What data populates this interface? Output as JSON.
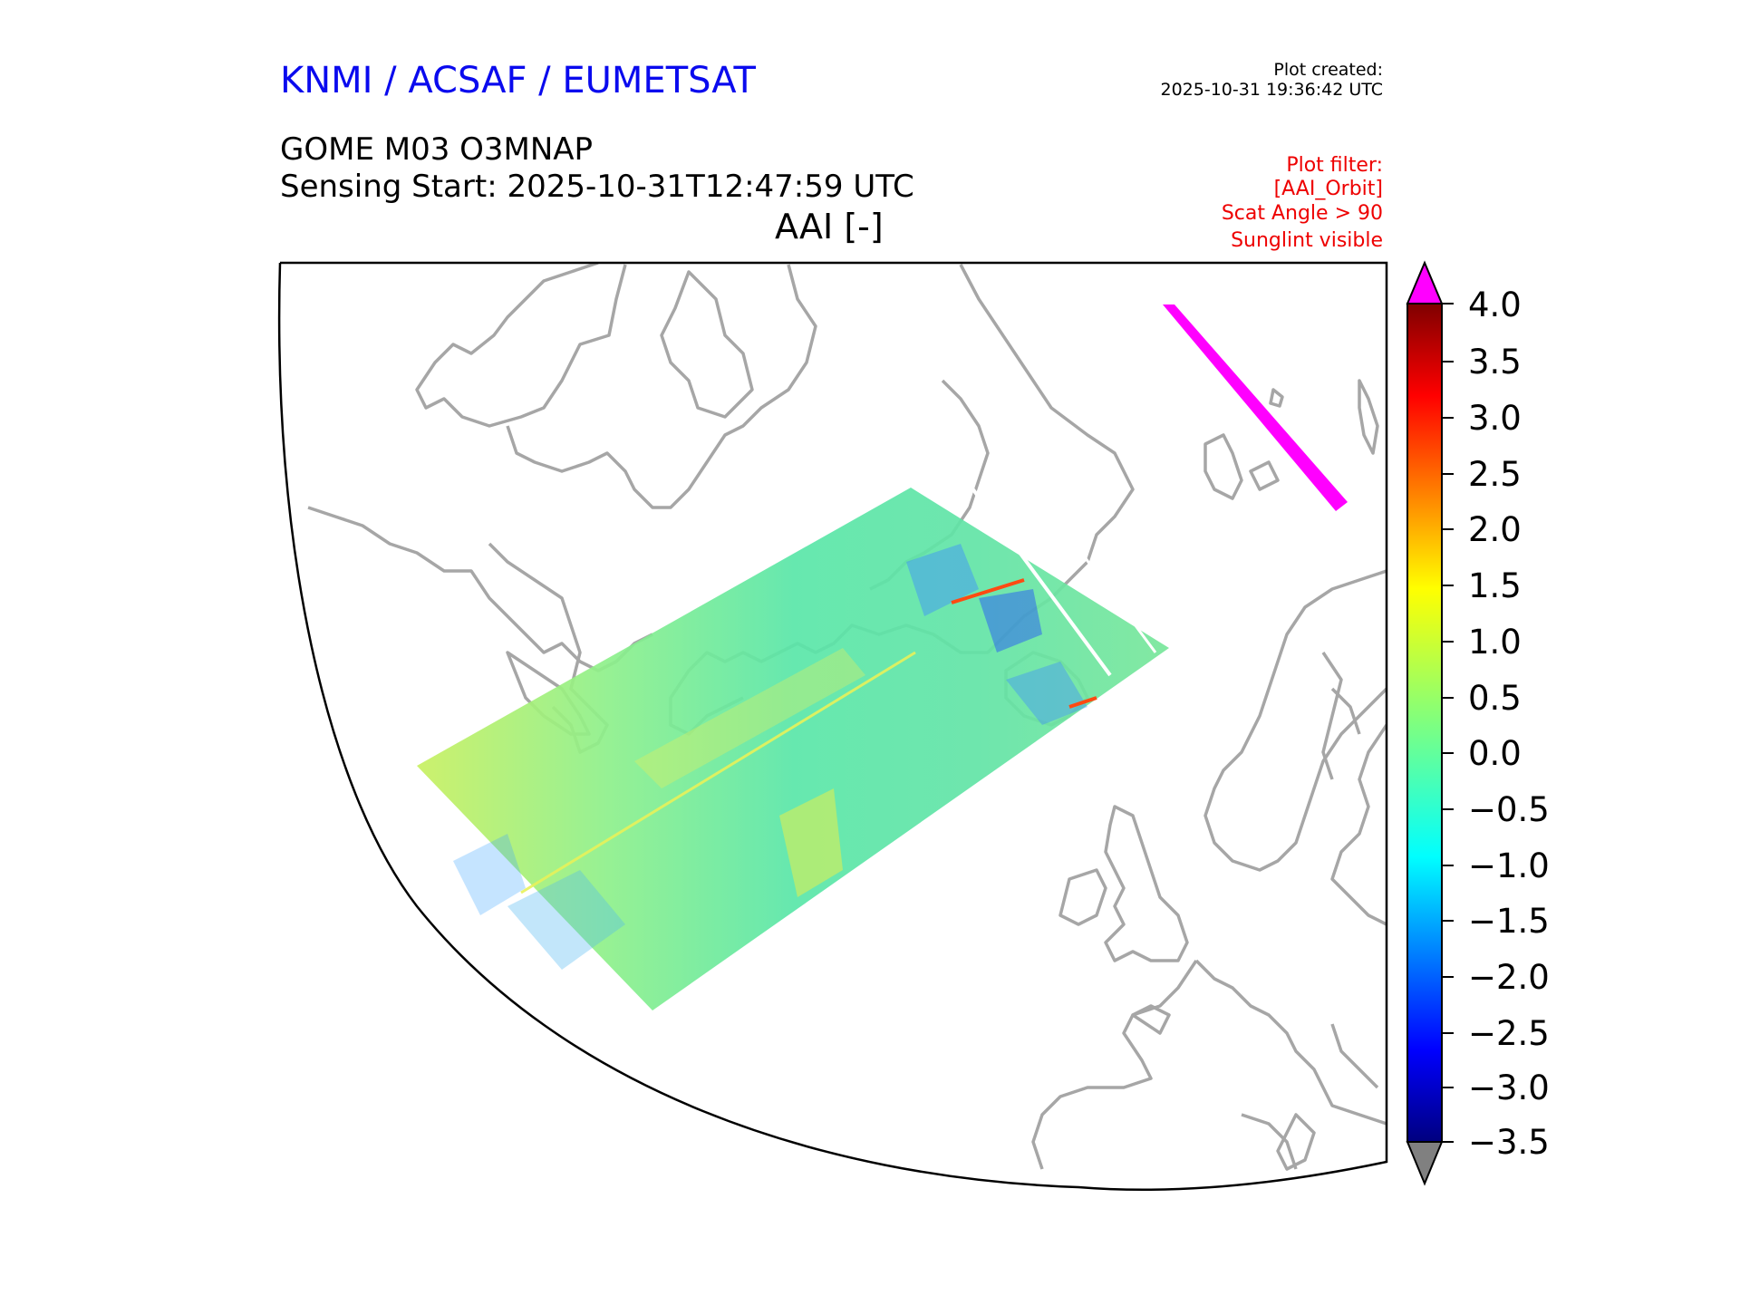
{
  "header": {
    "organisation": "KNMI / ACSAF / EUMETSAT",
    "plot_created_label": "Plot created:",
    "plot_created_value": "2025-10-31 19:36:42 UTC",
    "product": "GOME M03 O3MNAP",
    "sensing_start": "Sensing Start: 2025-10-31T12:47:59 UTC",
    "variable_title": "AAI [-]"
  },
  "plot_filter": [
    "Plot filter:",
    "[AAI_Orbit]",
    "Scat Angle > 90",
    "Sunglint visible"
  ],
  "colorbar": {
    "ticks": [
      "4.0",
      "3.5",
      "3.0",
      "2.5",
      "2.0",
      "1.5",
      "1.0",
      "0.5",
      "0.0",
      "−0.5",
      "−1.0",
      "−1.5",
      "−2.0",
      "−2.5",
      "−3.0",
      "−3.5"
    ],
    "vmin": -3.5,
    "vmax": 4.0,
    "over_color": "#ff00ff",
    "under_color": "#808080",
    "colormap": "jet"
  },
  "map_colors": {
    "coastline": "#a6a6a6",
    "sunglint_swath": "#ff00ff"
  }
}
